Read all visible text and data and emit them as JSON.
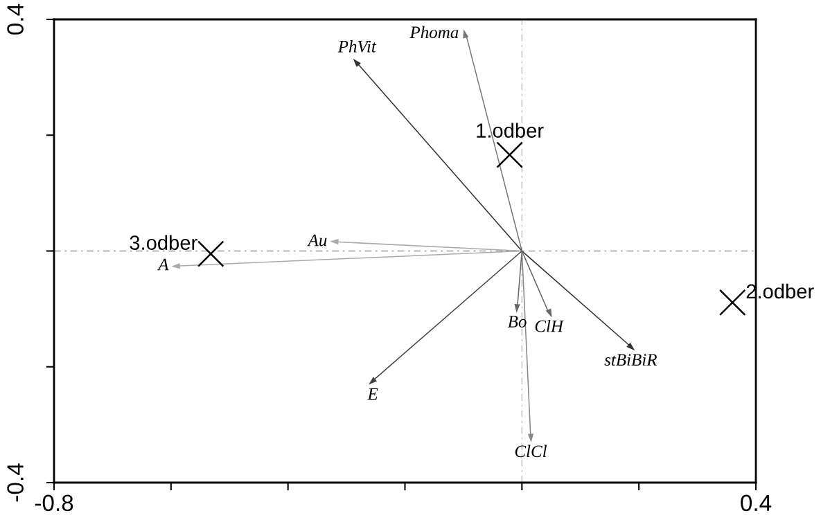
{
  "chart_data": {
    "type": "scatter",
    "xlim": [
      -0.8,
      0.4
    ],
    "ylim": [
      -0.4,
      0.4
    ],
    "xticks": [
      -0.8,
      {
        "value": -0.6,
        "label": null
      },
      {
        "value": -0.4,
        "label": null
      },
      {
        "value": -0.2,
        "label": null
      },
      {
        "value": 0,
        "label": null
      },
      {
        "value": 0.2,
        "label": null
      },
      0.4
    ],
    "yticks": [
      -0.4,
      {
        "value": -0.2,
        "label": null
      },
      {
        "value": 0,
        "label": null
      },
      {
        "value": 0.2,
        "label": null
      },
      0.4
    ],
    "ref_lines": [
      {
        "axis": "x",
        "value": 0,
        "color": "#bbbbbb",
        "line_style": "dashed"
      },
      {
        "axis": "y",
        "value": 0,
        "color": "#999999",
        "line_style": "dashed"
      }
    ],
    "series": [
      {
        "marker": "triangle",
        "colors": [
          "#777777",
          "#333333",
          "#aaaaaa",
          "#aaaaaa",
          "#666666",
          "#666666",
          "#333333",
          "#444444",
          "#888888"
        ],
        "x": [
          -0.096,
          -0.282,
          -0.321,
          -0.592,
          -0.008,
          0.046,
          0.186,
          -0.255,
          0.015
        ],
        "values": [
          0.375,
          0.325,
          0.016,
          -0.026,
          -0.099,
          -0.107,
          -0.165,
          -0.224,
          -0.323
        ]
      },
      {
        "color": "#000000",
        "marker": "cross",
        "x": [
          -0.021,
          -0.532,
          0.36
        ],
        "values": [
          0.166,
          -0.005,
          -0.089
        ]
      }
    ],
    "annotations": [
      {
        "text": "Phoma",
        "x": -0.096,
        "y": 0.375
      },
      {
        "text": "PhVit",
        "x": -0.282,
        "y": 0.325
      },
      {
        "text": "Au",
        "x": -0.321,
        "y": 0.016
      },
      {
        "text": "A",
        "x": -0.592,
        "y": -0.026
      },
      {
        "text": "Bo",
        "x": -0.008,
        "y": -0.099
      },
      {
        "text": "ClH",
        "x": 0.046,
        "y": -0.107
      },
      {
        "text": "stBiBiR",
        "x": 0.186,
        "y": -0.165
      },
      {
        "text": "E",
        "x": -0.255,
        "y": -0.224
      },
      {
        "text": "ClCl",
        "x": 0.015,
        "y": -0.323
      },
      {
        "text": "1.odber",
        "x": -0.021,
        "y": 0.166
      },
      {
        "text": "3.odber",
        "x": -0.532,
        "y": -0.005
      },
      {
        "text": "2.odber",
        "x": 0.36,
        "y": -0.089
      }
    ]
  }
}
